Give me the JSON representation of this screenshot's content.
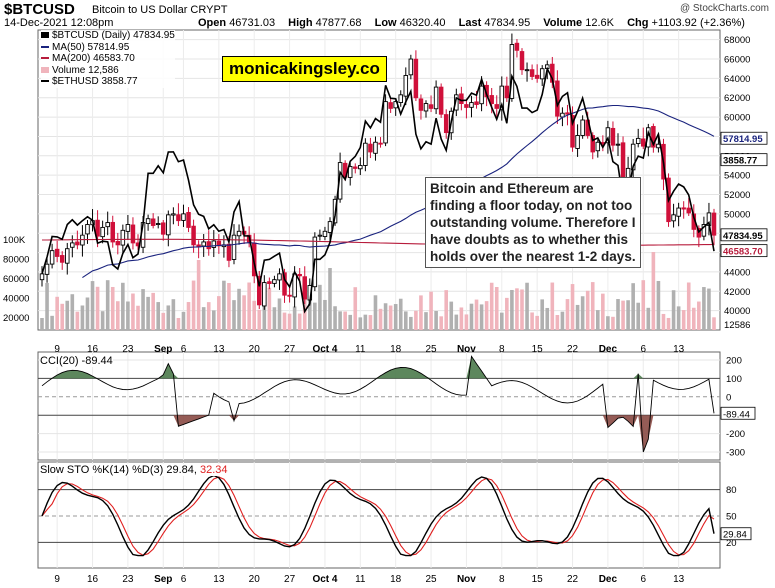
{
  "header": {
    "symbol": "$BTCUSD",
    "description": "Bitcoin to US Dollar CRYPT",
    "copyright": "@ StockCharts.com",
    "date": "14-Dec-2021 12:08pm",
    "open_label": "Open",
    "open": "46731.03",
    "high_label": "High",
    "high": "47877.68",
    "low_label": "Low",
    "low": "46320.40",
    "last_label": "Last",
    "last": "47834.95",
    "volume_label": "Volume",
    "volume": "12.6K",
    "chg_label": "Chg",
    "chg": "+1103.92 (+2.36%)"
  },
  "legend": {
    "price": "$BTCUSD (Daily) 47834.95",
    "ma50": "MA(50) 57814.95",
    "ma200": "MA(200) 46583.70",
    "volume": "Volume 12,586",
    "eth": "$ETHUSD 3858.77"
  },
  "watermark": "monicakingsley.co",
  "annotation": "Bitcoin and Ethereum are finding a floor today, on not too outstanding volume. Therefore I have doubts as to whether this holds over the nearest 1-2 days.",
  "cci": {
    "label": "CCI(20) -89.44",
    "value_tag": "-89.44"
  },
  "sto": {
    "label": "Slow STO %K(14) %D(3) 29.84, 32.34",
    "label_k": "Slow STO %K(14) %D(3) 29.84,",
    "label_d": "32.34",
    "value_tag": "29.84"
  },
  "colors": {
    "up": "#000000",
    "down": "#d0103a",
    "ma50": "#1a237e",
    "ma200": "#b71c3c",
    "eth": "#000000",
    "vol_up": "#b0b0b0",
    "vol_down": "#f0b4bc",
    "cci_pos": "#4b7a4b",
    "cci_neg": "#8a4a44",
    "k": "#000000",
    "d": "#e02020"
  },
  "chart_data": {
    "type": "candlestick",
    "x_ticks": [
      "9",
      "16",
      "23",
      "Sep",
      "6",
      "13",
      "20",
      "27",
      "Oct 4",
      "11",
      "18",
      "25",
      "Nov",
      "8",
      "15",
      "22",
      "Dec",
      "6",
      "13"
    ],
    "price_axis": [
      "68000",
      "66000",
      "64000",
      "62000",
      "60000",
      "58000",
      "56000",
      "54000",
      "52000",
      "50000",
      "48000",
      "46000",
      "44000",
      "42000",
      "40000"
    ],
    "volume_axis": [
      "100K",
      "80000",
      "60000",
      "40000",
      "20000"
    ],
    "ylim": [
      38000,
      69000
    ],
    "price_tags": {
      "ma50": "57814.95",
      "eth": "3858.77",
      "last": "47834.95",
      "ma200": "46583.70",
      "volume": "12586"
    },
    "close": [
      43800,
      44800,
      46200,
      45600,
      45000,
      46400,
      47000,
      46800,
      47800,
      48900,
      49300,
      47700,
      48600,
      49100,
      47100,
      46800,
      48300,
      48900,
      47000,
      46700,
      49100,
      49500,
      48800,
      49000,
      47900,
      49900,
      50000,
      49300,
      50000,
      48600,
      46800,
      46600,
      47100,
      46400,
      47200,
      46700,
      46800,
      45200,
      47800,
      48200,
      47900,
      47100,
      43600,
      40600,
      42900,
      42800,
      43200,
      43800,
      41600,
      41500,
      43800,
      43600,
      41200,
      42600,
      47600,
      47800,
      48200,
      49200,
      51500,
      55300,
      53800,
      54900,
      54700,
      55000,
      57300,
      56400,
      57400,
      57300,
      61600,
      60900,
      61600,
      62300,
      64300,
      66000,
      62000,
      60700,
      61400,
      60900,
      63100,
      60300,
      58400,
      60600,
      62300,
      61400,
      61000,
      61500,
      61300,
      63200,
      62100,
      61400,
      60900,
      63200,
      62000,
      67500,
      66900,
      64900,
      64900,
      64200,
      64000,
      65000,
      65400,
      63600,
      60100,
      60400,
      60300,
      56900,
      58100,
      59700,
      58100,
      56400,
      57400,
      57200,
      58900,
      57100,
      57200,
      53800,
      54700,
      57200,
      57800,
      57000,
      58900,
      56900,
      57200,
      53600,
      49200,
      49900,
      50600,
      50500,
      50100,
      48400,
      47600,
      48900,
      50100,
      47800
    ]
  }
}
